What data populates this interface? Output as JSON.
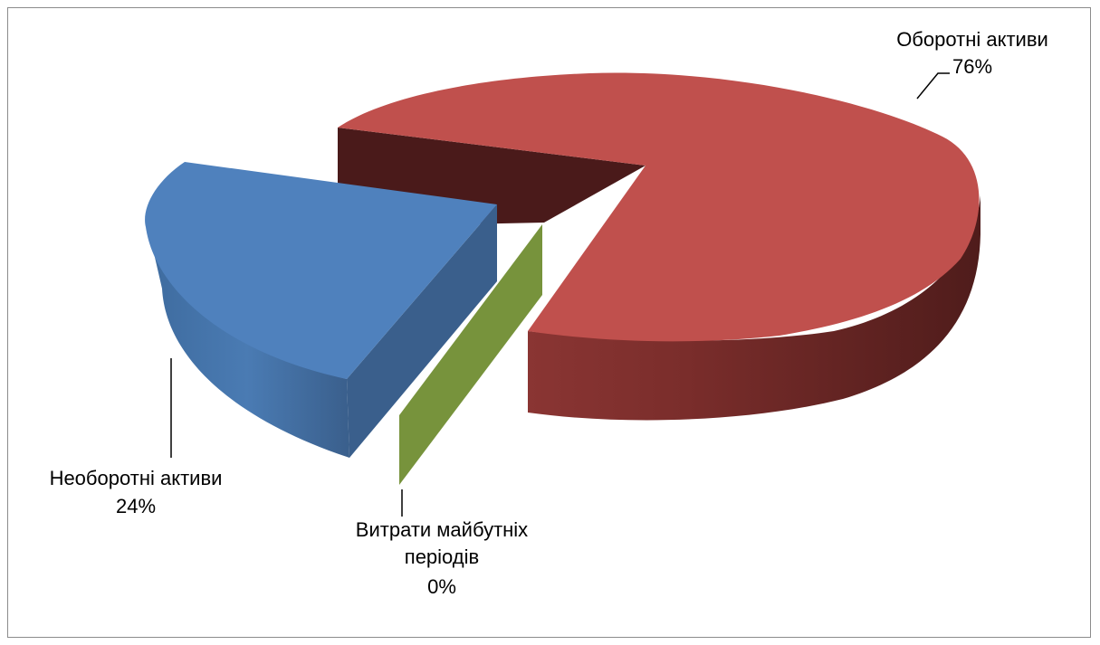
{
  "chart_data": {
    "type": "pie",
    "title": "",
    "style": "3d-exploded",
    "legend": "none",
    "slices": [
      {
        "label": "Оборотні активи",
        "value_label": "76%",
        "value": 76,
        "color": "#c0504d"
      },
      {
        "label": "Необоротні активи",
        "value_label": "24%",
        "value": 24,
        "color": "#4f81bd"
      },
      {
        "label": "Витрати майбутніх періодів",
        "value_label": "0%",
        "value": 0,
        "color": "#77933c"
      }
    ]
  },
  "labels": {
    "current": {
      "line1": "Оборотні активи",
      "line2": "76%"
    },
    "noncurrent": {
      "line1": "Необоротні активи",
      "line2": "24%"
    },
    "deferred": {
      "line1": "Витрати майбутніх",
      "line2": "періодів",
      "line3": "0%"
    }
  }
}
